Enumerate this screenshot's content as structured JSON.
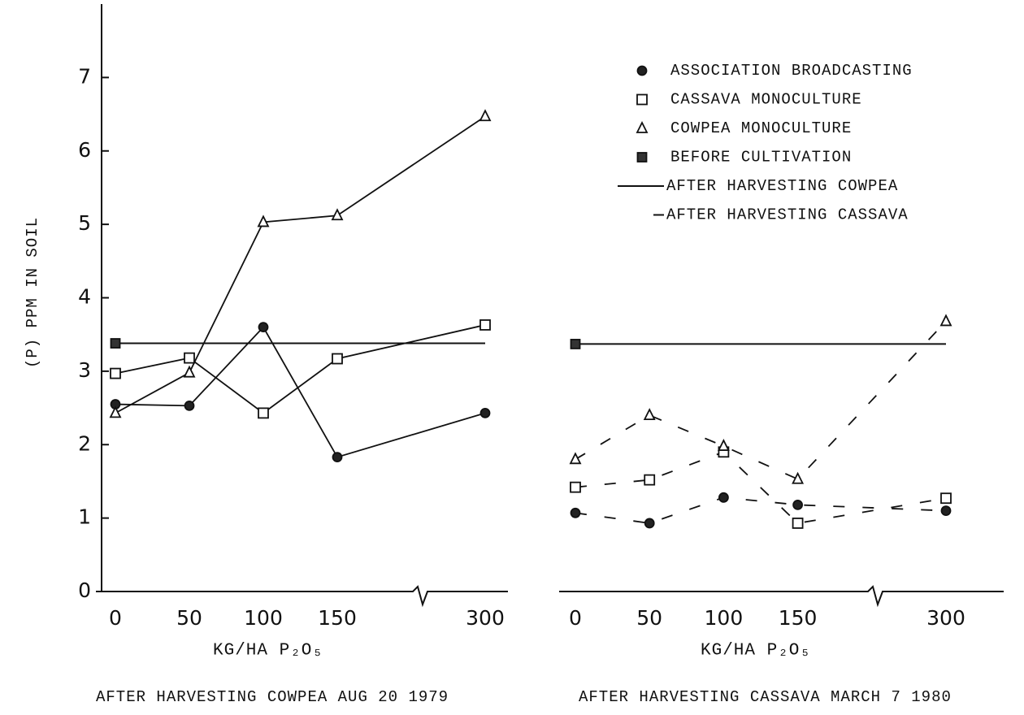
{
  "y_label": "(P) PPM IN SOIL",
  "legend": {
    "entries": [
      {
        "name": "ASSOCIATION BROADCASTING",
        "marker": "circle"
      },
      {
        "name": "CASSAVA MONOCULTURE",
        "marker": "square"
      },
      {
        "name": "COWPEA MONOCULTURE",
        "marker": "triangle"
      },
      {
        "name": "BEFORE CULTIVATION",
        "marker": "filled-square"
      }
    ],
    "line_styles": [
      {
        "name": "AFTER HARVESTING COWPEA",
        "dash": "solid"
      },
      {
        "name": "AFTER HARVESTING CASSAVA",
        "dash": "dashed"
      }
    ]
  },
  "chart_data": [
    {
      "type": "line",
      "line_style": "solid",
      "x_label": "KG/HA P₂O₅",
      "subtitle": "AFTER HARVESTING COWPEA AUG 20  1979",
      "categories": [
        0,
        50,
        100,
        150,
        300
      ],
      "ylim": [
        0,
        8
      ],
      "yticks": [
        0,
        1,
        2,
        3,
        4,
        5,
        6,
        7
      ],
      "series": [
        {
          "marker": "circle",
          "values": [
            2.55,
            2.53,
            3.6,
            1.83,
            2.43
          ]
        },
        {
          "marker": "square",
          "values": [
            2.97,
            3.18,
            2.43,
            3.17,
            3.63
          ]
        },
        {
          "marker": "triangle",
          "values": [
            2.43,
            2.98,
            5.03,
            5.12,
            6.47
          ]
        }
      ],
      "reference": {
        "marker": "filled-square",
        "value": 3.38
      }
    },
    {
      "type": "line",
      "line_style": "dashed",
      "x_label": "KG/HA P₂O₅",
      "subtitle": "AFTER HARVESTING CASSAVA MARCH 7 1980",
      "categories": [
        0,
        50,
        100,
        150,
        300
      ],
      "ylim": [
        0,
        8
      ],
      "series": [
        {
          "marker": "circle",
          "values": [
            1.07,
            0.93,
            1.28,
            1.18,
            1.1
          ]
        },
        {
          "marker": "square",
          "values": [
            1.42,
            1.52,
            1.9,
            0.93,
            1.27
          ]
        },
        {
          "marker": "triangle",
          "values": [
            1.8,
            2.4,
            1.98,
            1.53,
            3.68
          ]
        }
      ],
      "reference": {
        "marker": "filled-square",
        "value": 3.37
      }
    }
  ]
}
